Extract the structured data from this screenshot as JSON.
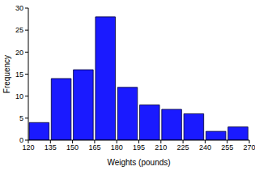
{
  "chart_data": {
    "type": "histogram",
    "x_label": "Weights (pounds)",
    "y_label": "Frequency",
    "bins": [
      120,
      135,
      150,
      165,
      180,
      195,
      210,
      225,
      240,
      255,
      270
    ],
    "values": [
      4,
      14,
      16,
      28,
      12,
      8,
      7,
      6,
      2,
      3
    ],
    "color": "#1a1aff",
    "xlim": [
      120,
      270
    ],
    "xticks": [
      120,
      135,
      150,
      165,
      180,
      195,
      210,
      225,
      240,
      255,
      270
    ],
    "ylim": [
      0,
      30
    ],
    "yticks": [
      0,
      5,
      10,
      15,
      20,
      25,
      30
    ],
    "grid": false
  }
}
